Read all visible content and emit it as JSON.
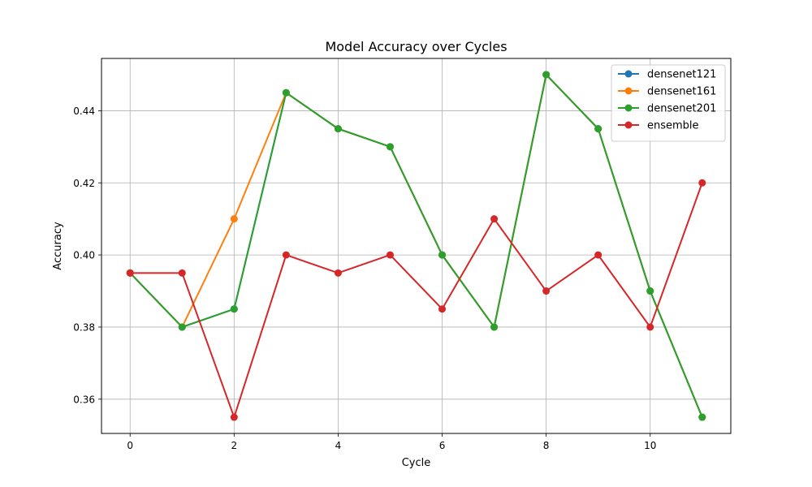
{
  "chart_data": {
    "type": "line",
    "title": "Model Accuracy over Cycles",
    "xlabel": "Cycle",
    "ylabel": "Accuracy",
    "x": [
      0,
      1,
      2,
      3,
      4,
      5,
      6,
      7,
      8,
      9,
      10,
      11
    ],
    "xlim": [
      -0.55,
      11.55
    ],
    "ylim": [
      0.3505,
      0.4545
    ],
    "xticks": [
      0,
      2,
      4,
      6,
      8,
      10
    ],
    "yticks": [
      0.36,
      0.38,
      0.4,
      0.42,
      0.44
    ],
    "ytick_labels": [
      "0.36",
      "0.38",
      "0.40",
      "0.42",
      "0.44"
    ],
    "grid": true,
    "legend_position": "top-right",
    "series": [
      {
        "name": "densenet121",
        "color": "#1f77b4",
        "values": [
          0.395,
          0.38,
          0.385,
          0.445,
          0.435,
          0.43,
          0.4,
          0.38,
          0.45,
          0.435,
          0.39,
          0.355
        ]
      },
      {
        "name": "densenet161",
        "color": "#ff7f0e",
        "values": [
          0.395,
          0.38,
          0.41,
          0.445,
          0.435,
          0.43,
          0.4,
          0.38,
          0.45,
          0.435,
          0.39,
          0.355
        ]
      },
      {
        "name": "densenet201",
        "color": "#2ca02c",
        "values": [
          0.395,
          0.38,
          0.385,
          0.445,
          0.435,
          0.43,
          0.4,
          0.38,
          0.45,
          0.435,
          0.39,
          0.355
        ]
      },
      {
        "name": "ensemble",
        "color": "#d62728",
        "values": [
          0.395,
          0.395,
          0.355,
          0.4,
          0.395,
          0.4,
          0.385,
          0.41,
          0.39,
          0.4,
          0.38,
          0.42
        ]
      }
    ]
  }
}
